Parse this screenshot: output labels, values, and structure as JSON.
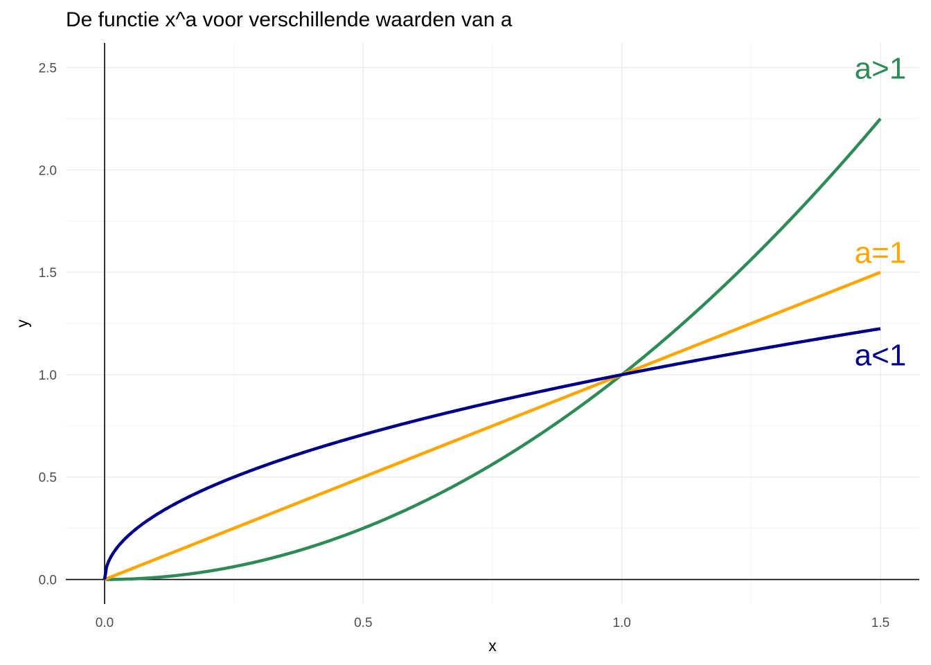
{
  "chart_data": {
    "type": "line",
    "title": "De functie x^a voor verschillende waarden van a",
    "xlabel": "x",
    "ylabel": "y",
    "xlim": [
      -0.075,
      1.575
    ],
    "ylim": [
      -0.12,
      2.62
    ],
    "x_ticks": [
      0.0,
      0.5,
      1.0,
      1.5
    ],
    "x_tick_labels": [
      "0.0",
      "0.5",
      "1.0",
      "1.5"
    ],
    "y_ticks": [
      0.0,
      0.5,
      1.0,
      1.5,
      2.0,
      2.5
    ],
    "y_tick_labels": [
      "0.0",
      "0.5",
      "1.0",
      "1.5",
      "2.0",
      "2.5"
    ],
    "grid": true,
    "series": [
      {
        "label": "a>1",
        "exponent": 2,
        "color": "#2e8b57",
        "x": [
          0,
          0.25,
          0.5,
          0.75,
          1.0,
          1.25,
          1.5
        ],
        "y": [
          0,
          0.0625,
          0.25,
          0.5625,
          1.0,
          1.5625,
          2.25
        ]
      },
      {
        "label": "a=1",
        "exponent": 1,
        "color": "#ffa500",
        "x": [
          0,
          0.25,
          0.5,
          0.75,
          1.0,
          1.25,
          1.5
        ],
        "y": [
          0,
          0.25,
          0.5,
          0.75,
          1.0,
          1.25,
          1.5
        ]
      },
      {
        "label": "a<1",
        "exponent": 0.5,
        "color": "#00008b",
        "x": [
          0,
          0.25,
          0.5,
          0.75,
          1.0,
          1.25,
          1.5
        ],
        "y": [
          0,
          0.5,
          0.7071,
          0.866,
          1.0,
          1.118,
          1.2247
        ]
      }
    ],
    "annotations": [
      {
        "text": "a>1",
        "x": 1.5,
        "y": 2.5,
        "color": "#2e8b57"
      },
      {
        "text": "a=1",
        "x": 1.5,
        "y": 1.6,
        "color": "#ffa500"
      },
      {
        "text": "a<1",
        "x": 1.5,
        "y": 1.1,
        "color": "#00008b"
      }
    ]
  }
}
